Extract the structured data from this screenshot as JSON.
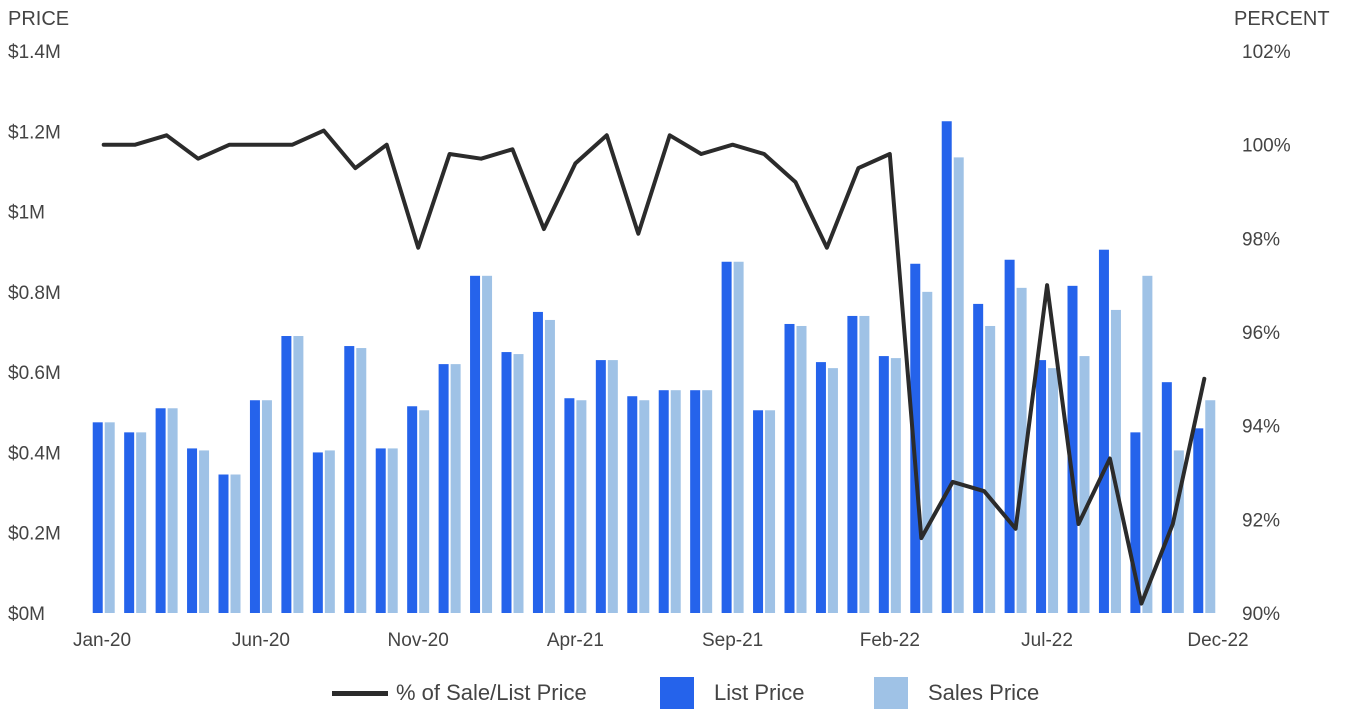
{
  "chart_data": {
    "type": "bar",
    "left_axis_title": "PRICE",
    "right_axis_title": "PERCENT",
    "x_tick_labels": [
      "Jan-20",
      "Jun-20",
      "Nov-20",
      "Apr-21",
      "Sep-21",
      "Feb-22",
      "Jul-22",
      "Dec-22"
    ],
    "y_left_ticks": [
      "$0M",
      "$0.2M",
      "$0.4M",
      "$0.6M",
      "$0.8M",
      "$1M",
      "$1.2M",
      "$1.4M"
    ],
    "y_right_ticks": [
      "90%",
      "92%",
      "94%",
      "96%",
      "98%",
      "100%",
      "102%"
    ],
    "ylim_left": [
      0,
      1400000
    ],
    "ylim_right": [
      90,
      102
    ],
    "categories": [
      "Jan-20",
      "Feb-20",
      "Mar-20",
      "Apr-20",
      "May-20",
      "Jun-20",
      "Jul-20",
      "Aug-20",
      "Sep-20",
      "Oct-20",
      "Nov-20",
      "Dec-20",
      "Jan-21",
      "Feb-21",
      "Mar-21",
      "Apr-21",
      "May-21",
      "Jun-21",
      "Jul-21",
      "Aug-21",
      "Sep-21",
      "Oct-21",
      "Nov-21",
      "Dec-21",
      "Jan-22",
      "Feb-22",
      "Mar-22",
      "Apr-22",
      "May-22",
      "Jun-22",
      "Jul-22",
      "Aug-22",
      "Sep-22",
      "Oct-22",
      "Nov-22",
      "Dec-22"
    ],
    "series": [
      {
        "name": "List Price",
        "axis": "left",
        "kind": "bar",
        "color": "#2563eb",
        "values": [
          475000,
          450000,
          510000,
          410000,
          345000,
          530000,
          690000,
          400000,
          665000,
          410000,
          515000,
          620000,
          840000,
          650000,
          750000,
          535000,
          630000,
          540000,
          555000,
          555000,
          875000,
          505000,
          720000,
          625000,
          740000,
          640000,
          870000,
          1225000,
          770000,
          880000,
          630000,
          815000,
          905000,
          450000,
          575000,
          460000
        ]
      },
      {
        "name": "Sales Price",
        "axis": "left",
        "kind": "bar",
        "color": "#9fc2e6",
        "values": [
          475000,
          450000,
          510000,
          405000,
          345000,
          530000,
          690000,
          405000,
          660000,
          410000,
          505000,
          620000,
          840000,
          645000,
          730000,
          530000,
          630000,
          530000,
          555000,
          555000,
          875000,
          505000,
          715000,
          610000,
          740000,
          635000,
          800000,
          1135000,
          715000,
          810000,
          610000,
          640000,
          755000,
          840000,
          405000,
          530000
        ]
      },
      {
        "name": "% of Sale/List Price",
        "axis": "right",
        "kind": "line",
        "color": "#2b2b2b",
        "values": [
          100.0,
          100.0,
          100.2,
          99.7,
          100.0,
          100.0,
          100.0,
          100.3,
          99.5,
          100.0,
          97.8,
          99.8,
          99.7,
          99.9,
          98.2,
          99.6,
          100.2,
          98.1,
          100.2,
          99.8,
          100.0,
          99.8,
          99.2,
          97.8,
          99.5,
          99.8,
          91.6,
          92.8,
          92.6,
          91.8,
          97.0,
          91.9,
          93.3,
          90.2,
          91.9,
          95.0
        ]
      }
    ]
  },
  "legend": {
    "line_label": "% of Sale/List Price",
    "list_label": "List Price",
    "sales_label": "Sales Price"
  },
  "colors": {
    "list": "#2563eb",
    "sales": "#9fc2e6",
    "line": "#2b2b2b",
    "text": "#444444"
  }
}
